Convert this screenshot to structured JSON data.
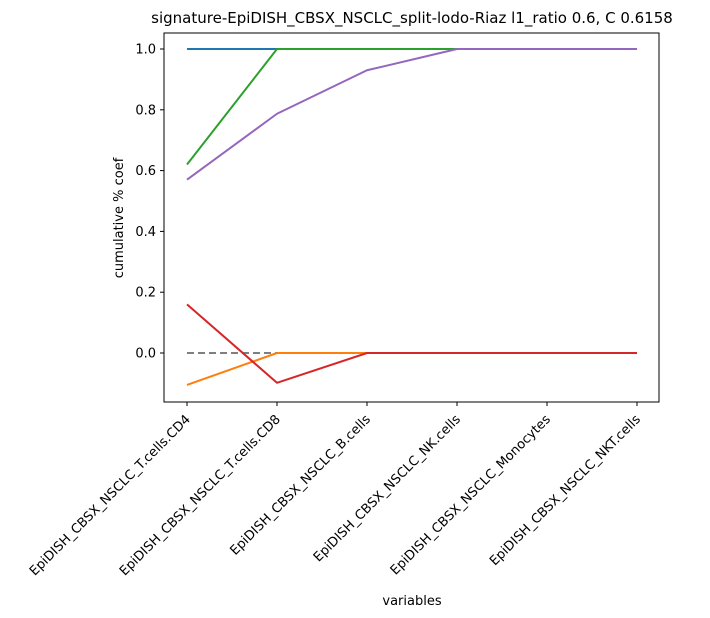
{
  "chart_data": {
    "type": "line",
    "title": "signature-EpiDISH_CBSX_NSCLC_split-lodo-Riaz l1_ratio 0.6, C 0.6158",
    "xlabel": "variables",
    "ylabel": "cumulative % coef",
    "categories": [
      "EpiDISH_CBSX_NSCLC_T.cells.CD4",
      "EpiDISH_CBSX_NSCLC_T.cells.CD8",
      "EpiDISH_CBSX_NSCLC_B.cells",
      "EpiDISH_CBSX_NSCLC_NK.cells",
      "EpiDISH_CBSX_NSCLC_Monocytes",
      "EpiDISH_CBSX_NSCLC_NKT.cells"
    ],
    "yticks": [
      "0.0",
      "0.2",
      "0.4",
      "0.6",
      "0.8",
      "1.0"
    ],
    "ylim": [
      -0.155,
      1.035
    ],
    "grid": false,
    "series": [
      {
        "color": "#1f77b4",
        "values": [
          1.0,
          1.0,
          1.0,
          1.0,
          1.0,
          1.0
        ]
      },
      {
        "color": "#ff7f0e",
        "values": [
          -0.105,
          0.0,
          0.0,
          0.0,
          0.0,
          0.0
        ]
      },
      {
        "color": "#2ca02c",
        "values": [
          0.62,
          1.0,
          1.0,
          1.0,
          1.0,
          1.0
        ]
      },
      {
        "color": "#d62728",
        "values": [
          0.16,
          -0.098,
          0.0,
          0.0,
          0.0,
          0.0
        ]
      },
      {
        "color": "#9467bd",
        "values": [
          0.57,
          0.787,
          0.93,
          1.0,
          1.0,
          1.0
        ]
      }
    ],
    "reference_line": {
      "color": "#7f7f7f",
      "style": "dashed",
      "values": [
        0.0,
        0.0
      ]
    }
  }
}
